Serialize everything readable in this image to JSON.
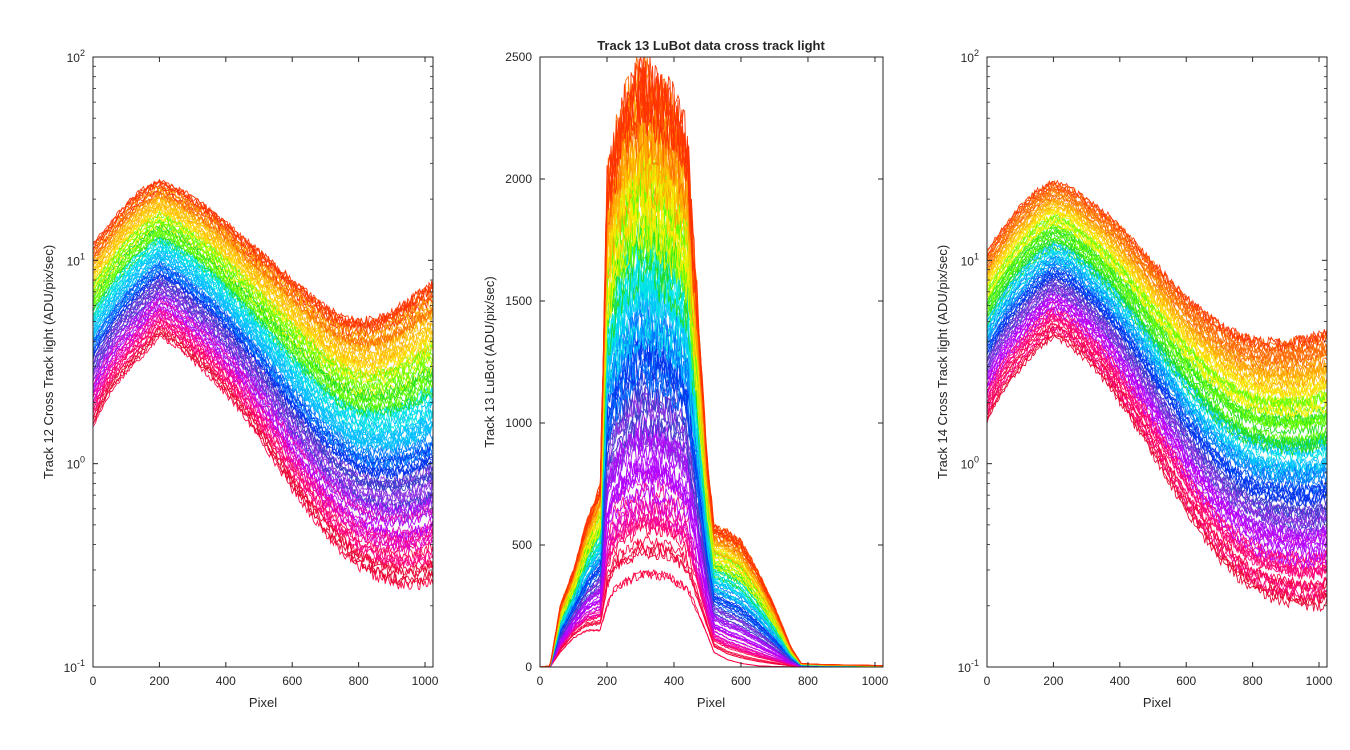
{
  "figure": {
    "background": "#ffffff",
    "axis_color": "#262626"
  },
  "chart_data": [
    {
      "id": "left",
      "type": "line",
      "title": "",
      "xlabel": "Pixel",
      "ylabel": "Track 12  Cross Track light (ADU/pix/sec)",
      "xlim": [
        0,
        1024
      ],
      "ylim": [
        0.1,
        100
      ],
      "yscale": "log",
      "xticks": [
        {
          "v": 0,
          "label": "0"
        },
        {
          "v": 200,
          "label": "200"
        },
        {
          "v": 400,
          "label": "400"
        },
        {
          "v": 600,
          "label": "600"
        },
        {
          "v": 800,
          "label": "800"
        },
        {
          "v": 1000,
          "label": "1000"
        }
      ],
      "yticks": [
        {
          "v": 0.1,
          "base": "10",
          "exp": "-1"
        },
        {
          "v": 1,
          "base": "10",
          "exp": "0"
        },
        {
          "v": 10,
          "base": "10",
          "exp": "1"
        },
        {
          "v": 100,
          "base": "10",
          "exp": "2"
        }
      ],
      "grid": false,
      "legend": "none",
      "series_count": 110,
      "profile": {
        "x": [
          0,
          50,
          100,
          150,
          200,
          250,
          300,
          350,
          400,
          450,
          500,
          550,
          600,
          650,
          700,
          750,
          800,
          850,
          900,
          950,
          1000,
          1024
        ],
        "top": [
          12,
          15,
          19,
          22.5,
          25,
          23,
          20.5,
          18,
          15.5,
          13,
          11.2,
          9.6,
          8.2,
          7,
          6,
          5.4,
          5.2,
          5.3,
          5.8,
          6.6,
          7.6,
          8
        ],
        "bottom": [
          1.5,
          2.2,
          2.8,
          3.4,
          4.2,
          3.8,
          3.2,
          2.7,
          2.2,
          1.75,
          1.35,
          1.0,
          0.75,
          0.58,
          0.45,
          0.37,
          0.31,
          0.28,
          0.26,
          0.25,
          0.26,
          0.27
        ]
      }
    },
    {
      "id": "middle",
      "type": "line",
      "title": "Track 13 LuBot  data cross track light",
      "xlabel": "Pixel",
      "ylabel": "Track 13 LuBot (ADU/pix/sec)",
      "xlim": [
        0,
        1024
      ],
      "ylim": [
        0,
        2500
      ],
      "yscale": "linear",
      "xticks": [
        {
          "v": 0,
          "label": "0"
        },
        {
          "v": 200,
          "label": "200"
        },
        {
          "v": 400,
          "label": "400"
        },
        {
          "v": 600,
          "label": "600"
        },
        {
          "v": 800,
          "label": "800"
        },
        {
          "v": 1000,
          "label": "1000"
        }
      ],
      "yticks": [
        {
          "v": 0,
          "label": "0"
        },
        {
          "v": 500,
          "label": "500"
        },
        {
          "v": 1000,
          "label": "1000"
        },
        {
          "v": 1500,
          "label": "1500"
        },
        {
          "v": 2000,
          "label": "2000"
        },
        {
          "v": 2500,
          "label": "2500"
        }
      ],
      "grid": false,
      "legend": "none",
      "series_count": 110,
      "profile": {
        "x": [
          0,
          30,
          60,
          100,
          140,
          180,
          200,
          220,
          260,
          300,
          340,
          380,
          420,
          440,
          460,
          500,
          520,
          560,
          600,
          650,
          700,
          750,
          780,
          850,
          950,
          1024
        ],
        "top": [
          0,
          5,
          250,
          400,
          600,
          750,
          2000,
          2150,
          2350,
          2450,
          2400,
          2350,
          2250,
          2150,
          1700,
          850,
          580,
          560,
          520,
          400,
          250,
          80,
          15,
          10,
          8,
          6
        ],
        "bottom": [
          0,
          0,
          60,
          120,
          150,
          150,
          250,
          320,
          350,
          380,
          380,
          370,
          340,
          320,
          260,
          130,
          60,
          30,
          15,
          5,
          2,
          1,
          0,
          0,
          0,
          0
        ]
      }
    },
    {
      "id": "right",
      "type": "line",
      "title": "",
      "xlabel": "Pixel",
      "ylabel": "Track 14  Cross Track light (ADU/pix/sec)",
      "xlim": [
        0,
        1024
      ],
      "ylim": [
        0.1,
        100
      ],
      "yscale": "log",
      "xticks": [
        {
          "v": 0,
          "label": "0"
        },
        {
          "v": 200,
          "label": "200"
        },
        {
          "v": 400,
          "label": "400"
        },
        {
          "v": 600,
          "label": "600"
        },
        {
          "v": 800,
          "label": "800"
        },
        {
          "v": 1000,
          "label": "1000"
        }
      ],
      "yticks": [
        {
          "v": 0.1,
          "base": "10",
          "exp": "-1"
        },
        {
          "v": 1,
          "base": "10",
          "exp": "0"
        },
        {
          "v": 10,
          "base": "10",
          "exp": "1"
        },
        {
          "v": 100,
          "base": "10",
          "exp": "2"
        }
      ],
      "grid": false,
      "legend": "none",
      "series_count": 110,
      "profile": {
        "x": [
          0,
          50,
          100,
          150,
          200,
          250,
          300,
          350,
          400,
          450,
          500,
          550,
          600,
          650,
          700,
          750,
          800,
          850,
          900,
          950,
          1000,
          1024
        ],
        "top": [
          11,
          14.5,
          18.5,
          22,
          24.5,
          23,
          20,
          17.5,
          14.8,
          12,
          9.8,
          8.1,
          6.6,
          5.6,
          4.9,
          4.4,
          4.1,
          4.0,
          4.0,
          4.1,
          4.3,
          4.4
        ],
        "bottom": [
          1.6,
          2.3,
          2.9,
          3.6,
          4.2,
          3.8,
          3.2,
          2.6,
          2.0,
          1.5,
          1.1,
          0.8,
          0.58,
          0.44,
          0.34,
          0.28,
          0.24,
          0.22,
          0.21,
          0.2,
          0.2,
          0.21
        ]
      }
    }
  ]
}
